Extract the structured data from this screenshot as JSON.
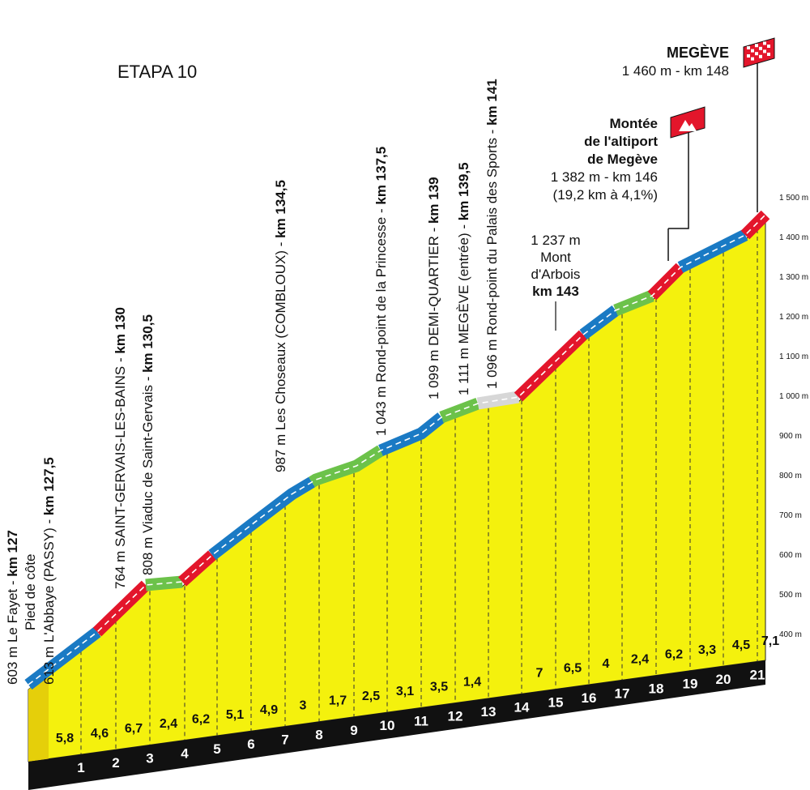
{
  "title": "ETAPA 10",
  "annotations": [
    {
      "text": "603 m Le Fayet - ",
      "km": "km 127"
    },
    {
      "text": "Pied de côte"
    },
    {
      "text": "613 m L'Abbaye (PASSY) - ",
      "km": "km 127,5"
    },
    {
      "text": "764 m SAINT-GERVAIS-LES-BAINS - ",
      "km": "km 130"
    },
    {
      "text": "808 m Viaduc de Saint-Gervais - ",
      "km": "km 130,5"
    },
    {
      "text": "987 m Les Choseaux (COMBLOUX) - ",
      "km": "km 134,5"
    },
    {
      "text": "1 043 m Rond-point de la Princesse - ",
      "km": "km 137,5"
    },
    {
      "text": "1 099 m DEMI-QUARTIER - ",
      "km": "km 139"
    },
    {
      "text": "1 111 m MEGÈVE (entrée) - ",
      "km": "km 139,5"
    },
    {
      "text": "1 096 m Rond-point du Palais des Sports - ",
      "km": "km 141"
    }
  ],
  "mont_arbois": {
    "lines": [
      "1 237 m",
      "Mont",
      "d'Arbois"
    ],
    "km": "km 143"
  },
  "climb": {
    "name_lines": [
      "Montée",
      "de l'altiport",
      "de Megève"
    ],
    "details": [
      "1 382 m - km 146",
      "(19,2 km à 4,1%)"
    ]
  },
  "finish": {
    "name": "MEGÈVE",
    "details": "1 460 m - km 148"
  },
  "altitude_axis": [
    "1 500 m",
    "1 400 m",
    "1 300 m",
    "1 200 m",
    "1 100 m",
    "1 000 m",
    "900 m",
    "800 m",
    "700 m",
    "600 m",
    "500 m",
    "400 m"
  ],
  "km_markers": [
    "1",
    "2",
    "3",
    "4",
    "5",
    "6",
    "7",
    "8",
    "9",
    "10",
    "11",
    "12",
    "13",
    "14",
    "15",
    "16",
    "17",
    "18",
    "19",
    "20",
    "21"
  ],
  "gradients": [
    "5,8",
    "4,6",
    "6,7",
    "2,4",
    "6,2",
    "5,1",
    "4,9",
    "3",
    "1,7",
    "2,5",
    "3,1",
    "3,5",
    "1,4",
    null,
    "7",
    "6,5",
    "4",
    "2,4",
    "6,2",
    "3,3",
    "4,5",
    "7,1"
  ]
}
